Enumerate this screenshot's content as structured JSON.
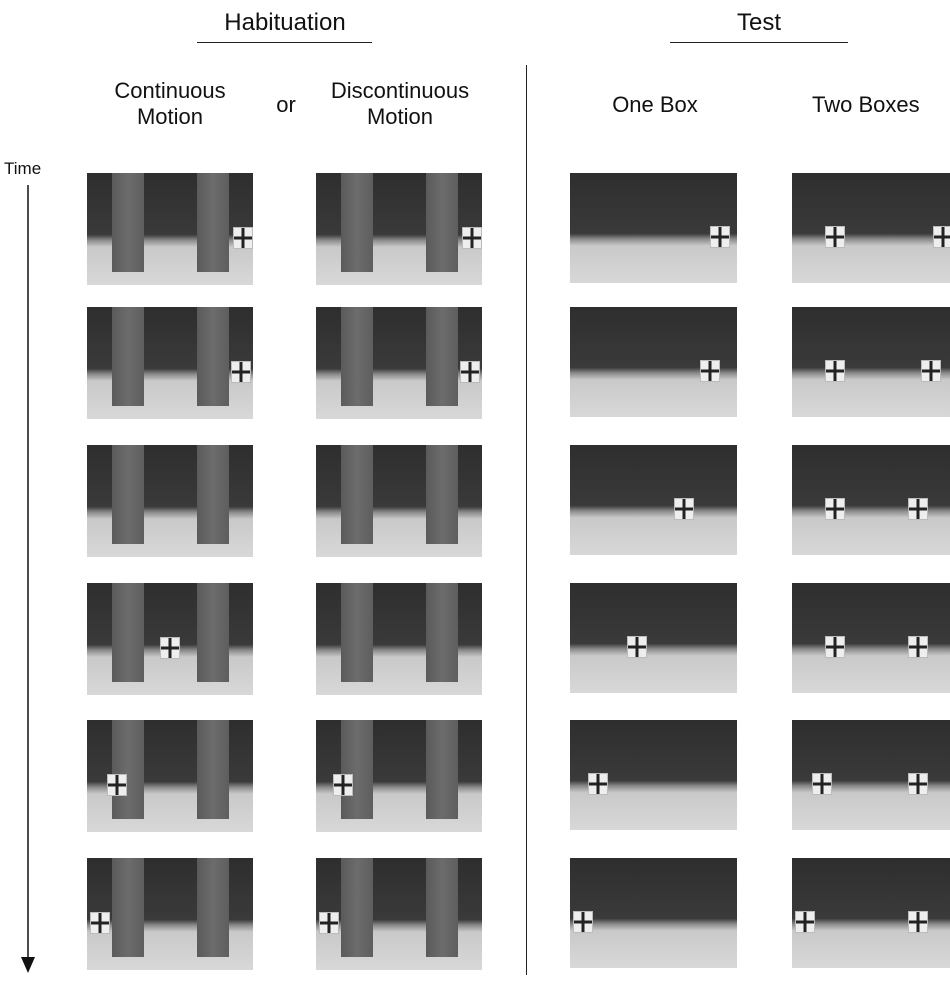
{
  "header": {
    "habituation": "Habituation",
    "test": "Test"
  },
  "columns": [
    {
      "label": "Continuous Motion"
    },
    {
      "label": "Discontinuous Motion"
    },
    {
      "label": "One Box"
    },
    {
      "label": "Two Boxes"
    }
  ],
  "separator": "or",
  "axis": {
    "label": "Time"
  }
}
